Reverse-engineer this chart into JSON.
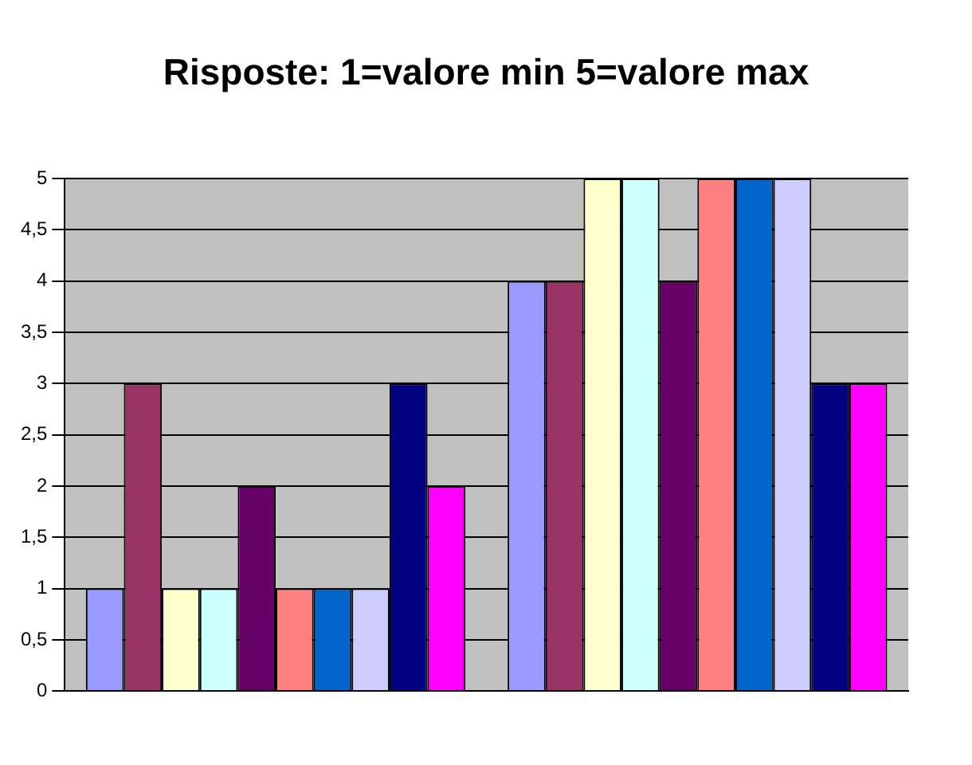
{
  "chart_data": {
    "type": "bar",
    "title": "Risposte: 1=valore min 5=valore max",
    "categories": [
      null,
      null
    ],
    "series": [
      {
        "color": "#9999ff",
        "values": [
          1,
          4
        ]
      },
      {
        "color": "#993366",
        "values": [
          3,
          4
        ]
      },
      {
        "color": "#ffffcc",
        "values": [
          1,
          5
        ]
      },
      {
        "color": "#ccffff",
        "values": [
          1,
          5
        ]
      },
      {
        "color": "#660066",
        "values": [
          2,
          4
        ]
      },
      {
        "color": "#ff8080",
        "values": [
          1,
          5
        ]
      },
      {
        "color": "#0066cc",
        "values": [
          1,
          5
        ]
      },
      {
        "color": "#ccccff",
        "values": [
          1,
          5
        ]
      },
      {
        "color": "#000080",
        "values": [
          3,
          3
        ]
      },
      {
        "color": "#ff00ff",
        "values": [
          2,
          3
        ]
      }
    ],
    "ylim": [
      0,
      5
    ],
    "yticks": [
      0,
      {
        "value": 0.5,
        "label": "0,5"
      },
      1,
      {
        "value": 1.5,
        "label": "1,5"
      },
      2,
      {
        "value": 2.5,
        "label": "2,5"
      },
      3,
      {
        "value": 3.5,
        "label": "3,5"
      },
      4,
      {
        "value": 4.5,
        "label": "4,5"
      },
      5
    ],
    "grid": "y",
    "legend": false
  }
}
